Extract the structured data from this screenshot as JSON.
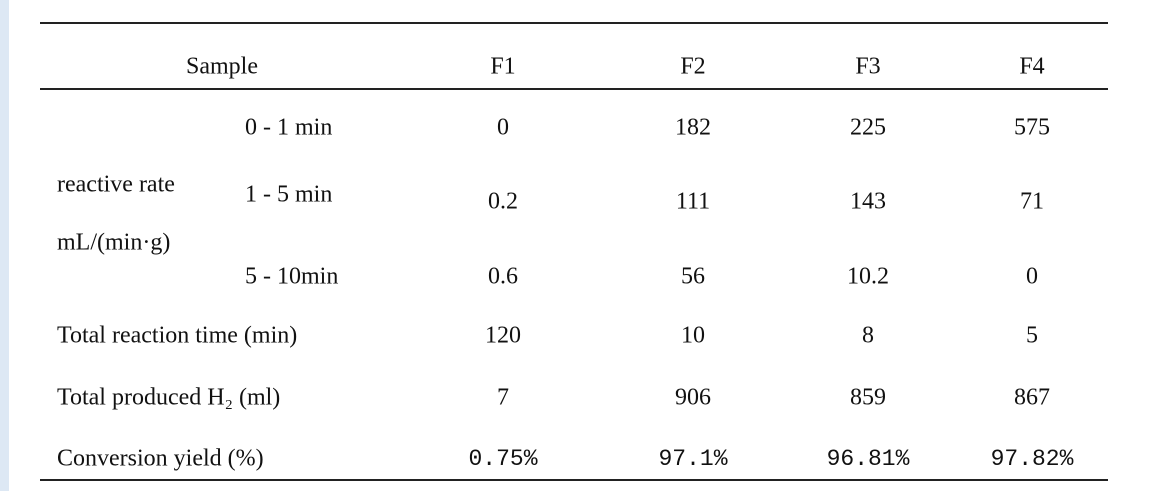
{
  "table": {
    "header": [
      "Sample",
      "F1",
      "F2",
      "F3",
      "F4"
    ],
    "group_label": [
      "reactive   rate",
      "mL/(min·g)"
    ],
    "rate_rows": [
      {
        "label": "0 - 1 min",
        "cells": [
          "0",
          "182",
          "225",
          "575"
        ]
      },
      {
        "label": "1 - 5 min",
        "cells": [
          "0.2",
          "111",
          "143",
          "71"
        ]
      },
      {
        "label": "5 - 10min",
        "cells": [
          "0.6",
          "56",
          "10.2",
          "0"
        ]
      }
    ],
    "rows": [
      {
        "label": "Total reaction time (min)",
        "cells": [
          "120",
          "10",
          "8",
          "5"
        ]
      },
      {
        "label": "Total produced H₂ (ml)",
        "cells": [
          "7",
          "906",
          "859",
          "867"
        ]
      },
      {
        "label": "Conversion yield (%)",
        "cells": [
          "0.75%",
          "97.1%",
          "96.81%",
          "97.82%"
        ]
      }
    ]
  }
}
